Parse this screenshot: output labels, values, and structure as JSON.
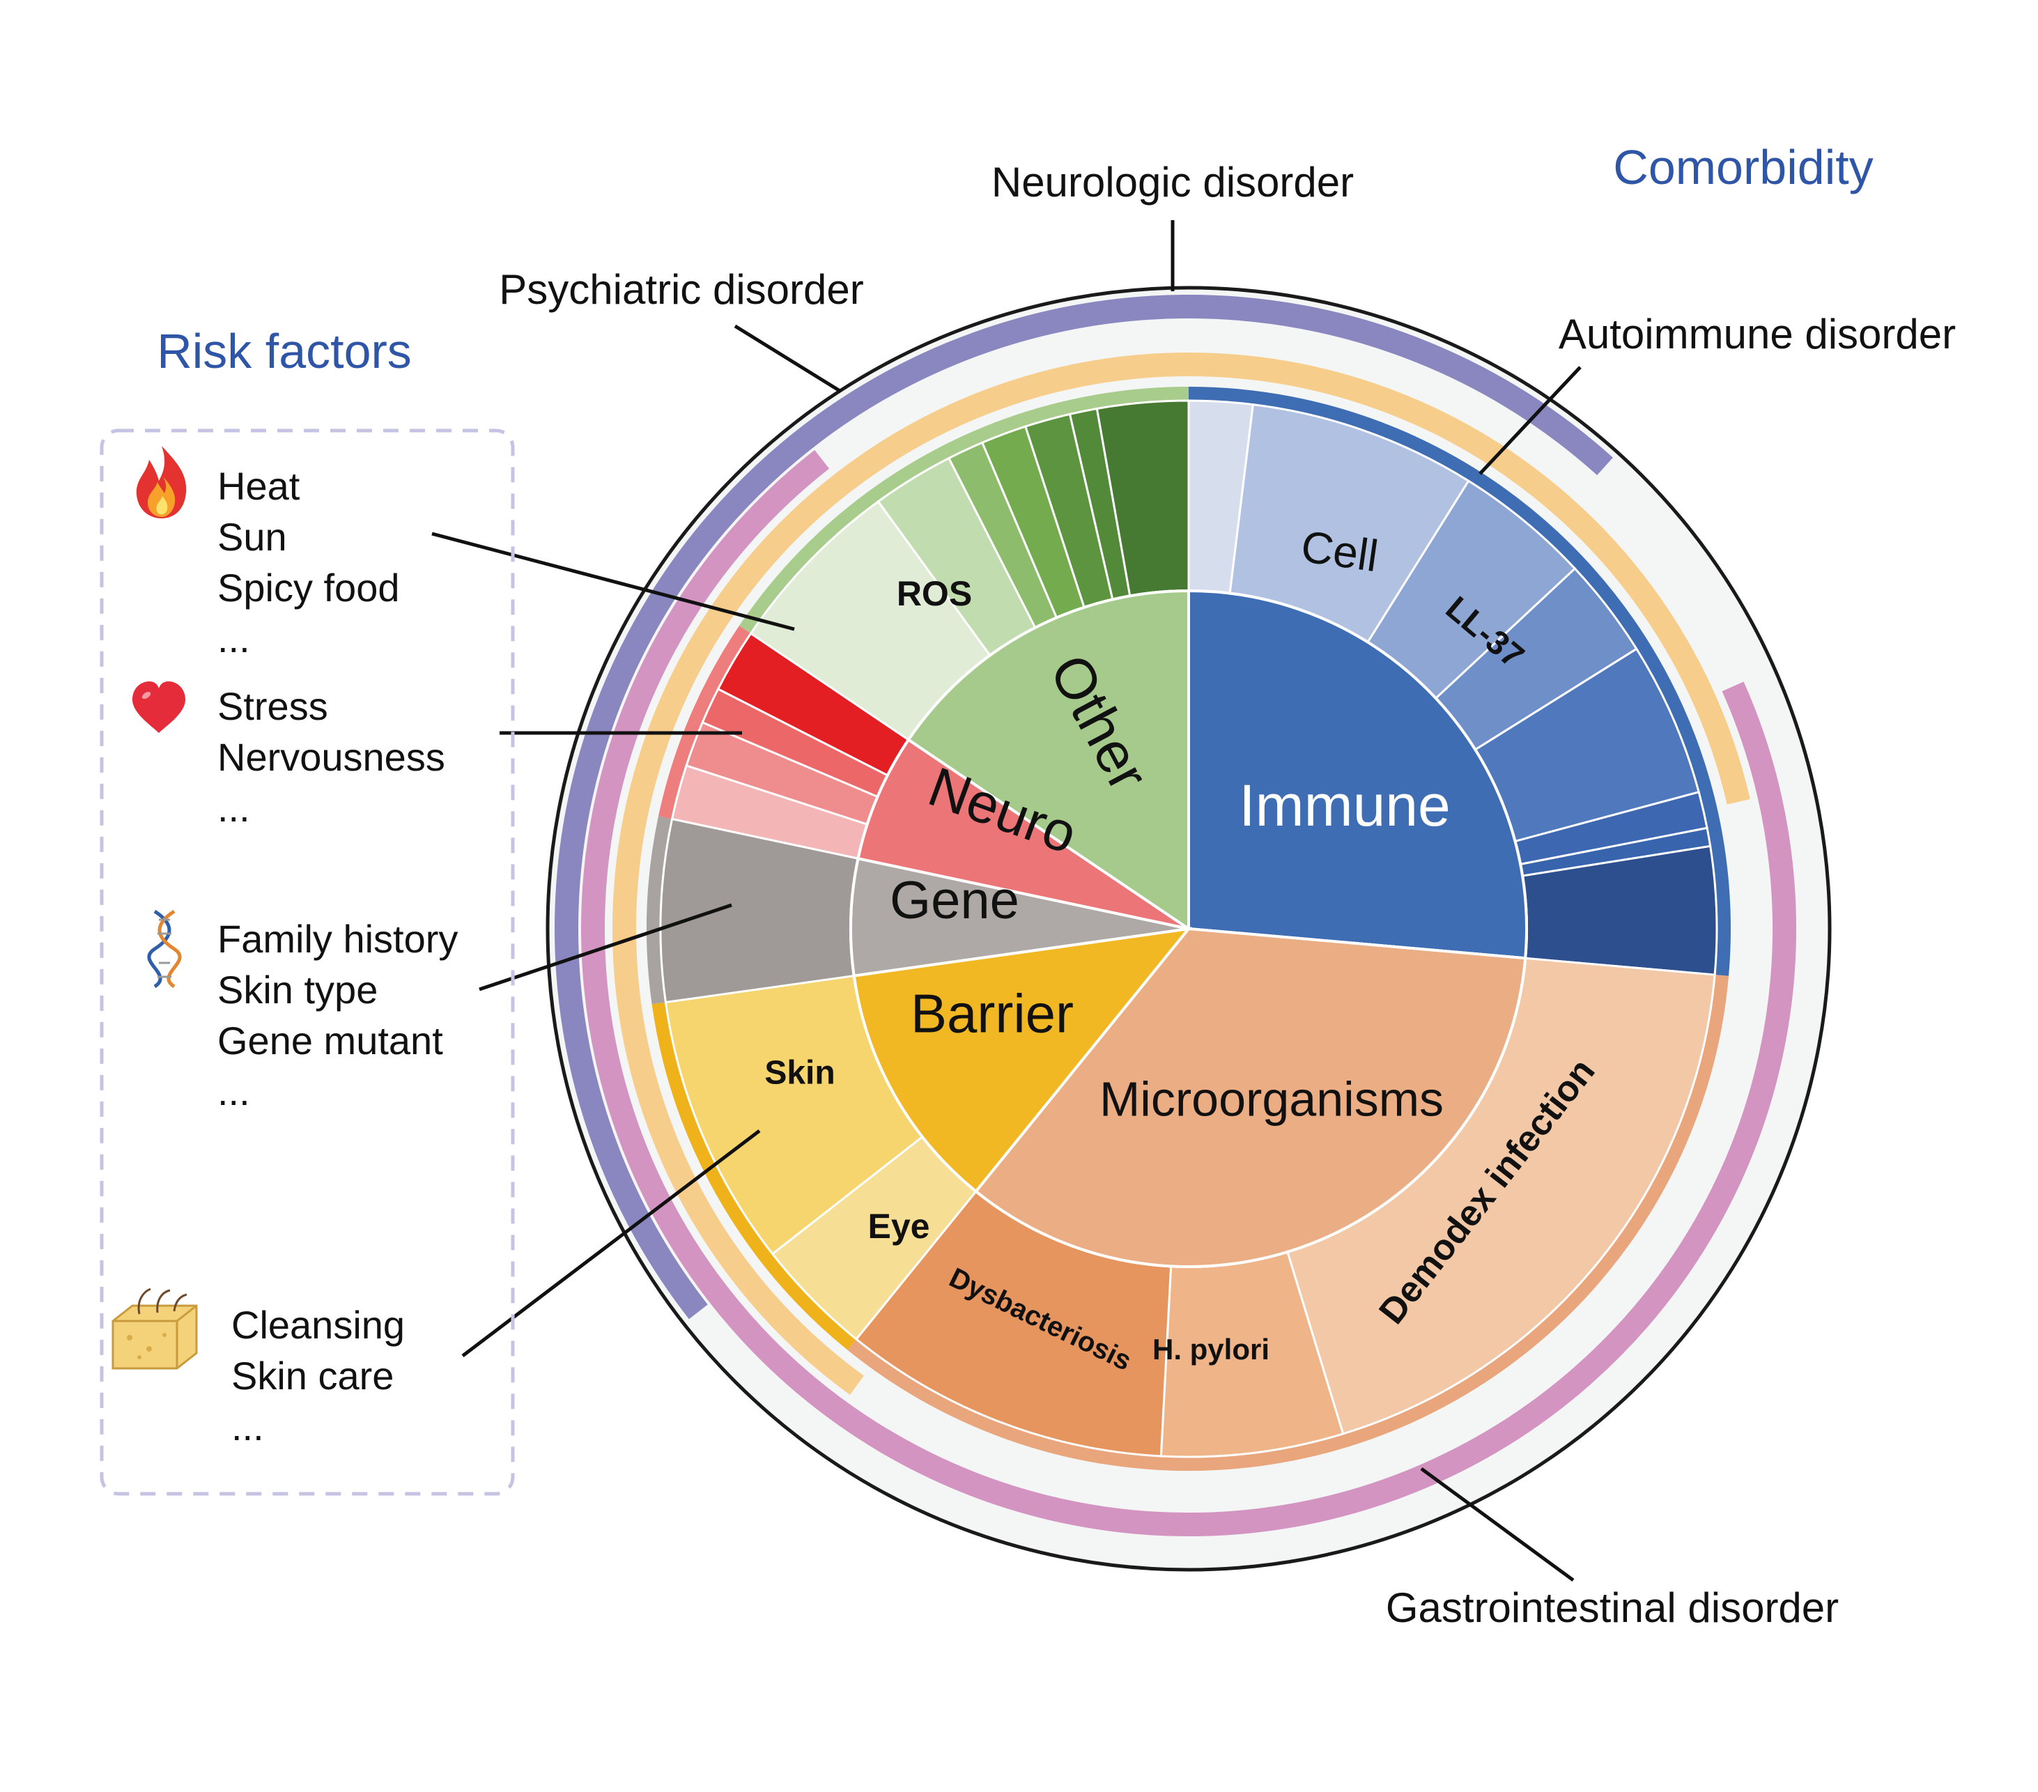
{
  "headings": {
    "risk_factors": "Risk factors",
    "comorbidity": "Comorbidity"
  },
  "comorbidity_labels": {
    "neurologic": "Neurologic disorder",
    "psychiatric": "Psychiatric disorder",
    "autoimmune": "Autoimmune disorder",
    "gastrointestinal": "Gastrointestinal disorder"
  },
  "risk_groups": [
    {
      "icon": "flame-icon",
      "items": [
        "Heat",
        "Sun",
        "Spicy food",
        "..."
      ]
    },
    {
      "icon": "heart-icon",
      "items": [
        "Stress",
        "Nervousness",
        "..."
      ]
    },
    {
      "icon": "dna-icon",
      "items": [
        "Family history",
        "Skin type",
        "Gene mutant",
        "..."
      ]
    },
    {
      "icon": "skin-icon",
      "items": [
        "Cleansing",
        "Skin care",
        "..."
      ]
    }
  ],
  "inner_categories": {
    "immune": "Immune",
    "microorganisms": "Microorganisms",
    "barrier": "Barrier",
    "gene": "Gene",
    "neuro": "Neuro",
    "other": "Other"
  },
  "outer_segments": {
    "cell": "Cell",
    "ll37": "LL-37",
    "ros": "ROS",
    "skin": "Skin",
    "eye": "Eye",
    "dysbacteriosis": "Dysbacteriosis",
    "h_pylori": "H. pylori",
    "demodex": "Demodex infection"
  },
  "colors": {
    "immune": "#3e6db3",
    "microorganisms": "#ebad83",
    "barrier": "#f2b823",
    "gene": "#aea9a7",
    "neuro": "#ec7677",
    "other": "#a6ca8b",
    "heading": "#2f56a6",
    "ring_purple": "#8a86c0",
    "ring_pink": "#d394c2",
    "ring_orange": "#f7cd8b"
  }
}
